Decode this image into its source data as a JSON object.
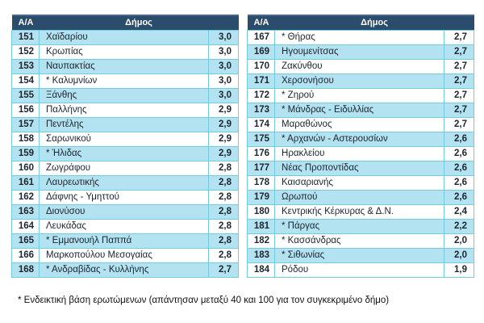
{
  "header": {
    "num_label": "Α/Α",
    "name_label": "Δήμος"
  },
  "tables": [
    {
      "rows": [
        {
          "num": "151",
          "name": "Χαϊδαρίου",
          "value": "3,0",
          "shaded": true
        },
        {
          "num": "152",
          "name": "Κρωπίας",
          "value": "3,0",
          "shaded": false
        },
        {
          "num": "153",
          "name": "Ναυπακτίας",
          "value": "3,0",
          "shaded": true
        },
        {
          "num": "154",
          "name": "* Καλυμνίων",
          "value": "3,0",
          "shaded": false
        },
        {
          "num": "155",
          "name": "Ξάνθης",
          "value": "3,0",
          "shaded": true
        },
        {
          "num": "156",
          "name": "Παλλήνης",
          "value": "2,9",
          "shaded": false
        },
        {
          "num": "157",
          "name": "Πεντέλης",
          "value": "2,9",
          "shaded": true
        },
        {
          "num": "158",
          "name": "Σαρωνικού",
          "value": "2,9",
          "shaded": false
        },
        {
          "num": "159",
          "name": "* Ήλιδας",
          "value": "2,9",
          "shaded": true
        },
        {
          "num": "160",
          "name": "Ζωγράφου",
          "value": "2,8",
          "shaded": false
        },
        {
          "num": "161",
          "name": "Λαυρεωτικής",
          "value": "2,8",
          "shaded": true
        },
        {
          "num": "162",
          "name": "Δάφνης - Υμηττού",
          "value": "2,8",
          "shaded": false
        },
        {
          "num": "163",
          "name": "Διονύσου",
          "value": "2,8",
          "shaded": true
        },
        {
          "num": "164",
          "name": "Λευκάδας",
          "value": "2,8",
          "shaded": false
        },
        {
          "num": "165",
          "name": "* Εμμανουήλ Παππά",
          "value": "2,8",
          "shaded": true
        },
        {
          "num": "166",
          "name": "Μαρκοπούλου Μεσογαίας",
          "value": "2,8",
          "shaded": false
        },
        {
          "num": "168",
          "name": "* Ανδραβίδας - Κυλλήνης",
          "value": "2,7",
          "shaded": true
        }
      ]
    },
    {
      "rows": [
        {
          "num": "167",
          "name": "* Θήρας",
          "value": "2,7",
          "shaded": false
        },
        {
          "num": "169",
          "name": "Ηγουμενίτσας",
          "value": "2,7",
          "shaded": true
        },
        {
          "num": "170",
          "name": "Ζακύνθου",
          "value": "2,7",
          "shaded": false
        },
        {
          "num": "171",
          "name": "Χερσονήσου",
          "value": "2,7",
          "shaded": true
        },
        {
          "num": "172",
          "name": "* Ζηρού",
          "value": "2,7",
          "shaded": false
        },
        {
          "num": "173",
          "name": "* Μάνδρας - Ειδυλλίας",
          "value": "2,7",
          "shaded": true
        },
        {
          "num": "174",
          "name": "Μαραθώνος",
          "value": "2,7",
          "shaded": false
        },
        {
          "num": "175",
          "name": "* Αρχανών - Αστερουσίων",
          "value": "2,6",
          "shaded": true
        },
        {
          "num": "176",
          "name": "Ηρακλείου",
          "value": "2,6",
          "shaded": false
        },
        {
          "num": "177",
          "name": "Νέας Προποντίδας",
          "value": "2,6",
          "shaded": true
        },
        {
          "num": "178",
          "name": "Καισαριανής",
          "value": "2,6",
          "shaded": false
        },
        {
          "num": "179",
          "name": "Ωρωπού",
          "value": "2,6",
          "shaded": true
        },
        {
          "num": "180",
          "name": "Κεντρικής Κέρκυρας & Δ.Ν.",
          "value": "2,4",
          "shaded": false
        },
        {
          "num": "181",
          "name": "* Πάργας",
          "value": "2,2",
          "shaded": true
        },
        {
          "num": "182",
          "name": "* Κασσάνδρας",
          "value": "2,0",
          "shaded": false
        },
        {
          "num": "183",
          "name": "* Σιθωνίας",
          "value": "2,0",
          "shaded": true
        },
        {
          "num": "184",
          "name": "Ρόδου",
          "value": "1,9",
          "shaded": false
        }
      ]
    }
  ],
  "footnote": "* Ενδεικτική βάση ερωτώμενων (απάντησαν μεταξύ 40 και 100 για τον συγκεκριμένο δήμο)",
  "colors": {
    "header_bg": "#2B4C6B",
    "header_edge": "#46688C",
    "shaded_row": "#B3E2F0",
    "cell_border": "#72CBDF",
    "header_text": "#FFFFFF"
  }
}
